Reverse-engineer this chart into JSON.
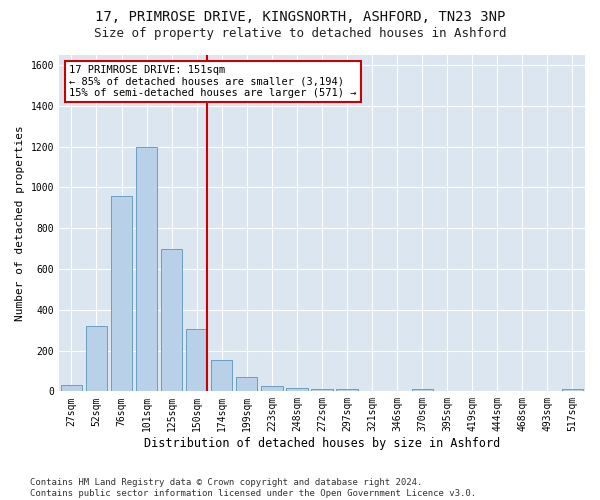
{
  "title": "17, PRIMROSE DRIVE, KINGSNORTH, ASHFORD, TN23 3NP",
  "subtitle": "Size of property relative to detached houses in Ashford",
  "xlabel": "Distribution of detached houses by size in Ashford",
  "ylabel": "Number of detached properties",
  "bar_labels": [
    "27sqm",
    "52sqm",
    "76sqm",
    "101sqm",
    "125sqm",
    "150sqm",
    "174sqm",
    "199sqm",
    "223sqm",
    "248sqm",
    "272sqm",
    "297sqm",
    "321sqm",
    "346sqm",
    "370sqm",
    "395sqm",
    "419sqm",
    "444sqm",
    "468sqm",
    "493sqm",
    "517sqm"
  ],
  "bar_values": [
    30,
    320,
    960,
    1200,
    700,
    305,
    155,
    70,
    25,
    15,
    12,
    10,
    0,
    0,
    12,
    0,
    0,
    0,
    0,
    0,
    12
  ],
  "bar_color": "#b8d0e8",
  "bar_edge_color": "#6a9ec0",
  "vline_color": "#cc0000",
  "annotation_line1": "17 PRIMROSE DRIVE: 151sqm",
  "annotation_line2": "← 85% of detached houses are smaller (3,194)",
  "annotation_line3": "15% of semi-detached houses are larger (571) →",
  "annotation_box_color": "#ffffff",
  "annotation_box_edge": "#cc0000",
  "ylim": [
    0,
    1650
  ],
  "yticks": [
    0,
    200,
    400,
    600,
    800,
    1000,
    1200,
    1400,
    1600
  ],
  "fig_bg_color": "#ffffff",
  "plot_bg": "#dce6f0",
  "footer": "Contains HM Land Registry data © Crown copyright and database right 2024.\nContains public sector information licensed under the Open Government Licence v3.0.",
  "title_fontsize": 10,
  "subtitle_fontsize": 9,
  "xlabel_fontsize": 8.5,
  "ylabel_fontsize": 8,
  "tick_fontsize": 7,
  "footer_fontsize": 6.5,
  "ann_fontsize": 7.5
}
